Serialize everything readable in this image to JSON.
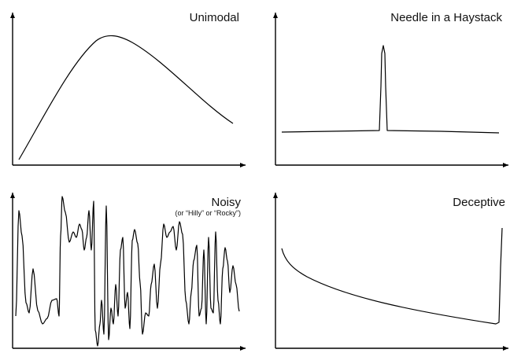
{
  "panels": [
    {
      "title": "Unimodal",
      "subtitle": ""
    },
    {
      "title": "Needle in a Haystack",
      "subtitle": ""
    },
    {
      "title": "Noisy",
      "subtitle": "(or “Hilly” or “Rocky”)"
    },
    {
      "title": "Deceptive",
      "subtitle": ""
    }
  ],
  "colors": {
    "ink": "#000000",
    "background": "#ffffff"
  }
}
